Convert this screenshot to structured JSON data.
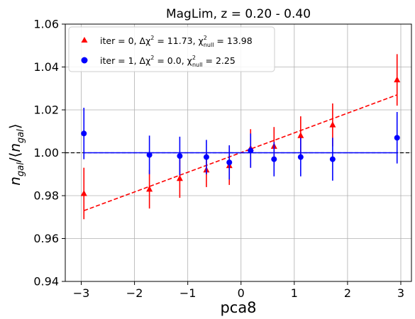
{
  "chart_data": {
    "type": "scatter",
    "title": "MagLim, z = 0.20 - 0.40",
    "xlabel": "pca8",
    "ylabel": "n_gal/⟨n_gal⟩",
    "xlim": [
      -3.3,
      3.2
    ],
    "ylim": [
      0.94,
      1.06
    ],
    "xticks": [
      -3,
      -2,
      -1,
      0,
      1,
      2,
      3
    ],
    "xtick_labels": [
      "−3",
      "−2",
      "−1",
      "0",
      "1",
      "2",
      "3"
    ],
    "yticks": [
      0.94,
      0.96,
      0.98,
      1.0,
      1.02,
      1.04,
      1.06
    ],
    "ytick_labels": [
      "0.94",
      "0.96",
      "0.98",
      "1.00",
      "1.02",
      "1.04",
      "1.06"
    ],
    "grid": true,
    "legend_position": "top-left",
    "reference_line": {
      "y": 1.0,
      "style": "dashed",
      "color": "#000000"
    },
    "series": [
      {
        "name": "iter = 0, Δχ² = 11.73,  χ²_null = 13.98",
        "legend_parts": {
          "pre": "iter = 0, Δχ",
          "sup": "2",
          "mid": " = 11.73,  χ",
          "sub": "null",
          "sup2": "2",
          "post": " = 13.98"
        },
        "color": "#ff0000",
        "marker": "triangle",
        "x": [
          -2.95,
          -1.72,
          -1.15,
          -0.65,
          -0.22,
          0.18,
          0.62,
          1.12,
          1.72,
          2.93
        ],
        "y": [
          0.981,
          0.983,
          0.988,
          0.992,
          0.994,
          1.002,
          1.003,
          1.008,
          1.013,
          1.034
        ],
        "yerr": [
          0.012,
          0.009,
          0.009,
          0.008,
          0.009,
          0.009,
          0.009,
          0.009,
          0.01,
          0.012
        ],
        "fit": {
          "x": [
            -2.95,
            2.93
          ],
          "y": [
            0.973,
            1.027
          ],
          "style": "dashed",
          "color": "#ff0000"
        }
      },
      {
        "name": "iter = 1, Δχ² = 0.0,  χ²_null = 2.25",
        "legend_parts": {
          "pre": "iter = 1, Δχ",
          "sup": "2",
          "mid": " = 0.0,  χ",
          "sub": "null",
          "sup2": "2",
          "post": " = 2.25"
        },
        "color": "#0000ff",
        "marker": "circle",
        "x": [
          -2.95,
          -1.72,
          -1.15,
          -0.65,
          -0.22,
          0.18,
          0.62,
          1.12,
          1.72,
          2.93
        ],
        "y": [
          1.009,
          0.999,
          0.9985,
          0.998,
          0.9955,
          1.001,
          0.997,
          0.998,
          0.997,
          1.007
        ],
        "yerr": [
          0.012,
          0.009,
          0.009,
          0.008,
          0.008,
          0.008,
          0.008,
          0.009,
          0.01,
          0.012
        ],
        "fit": {
          "x": [
            -2.95,
            2.93
          ],
          "y": [
            1.0,
            1.0
          ],
          "style": "solid",
          "color": "#0000ff"
        }
      }
    ]
  }
}
